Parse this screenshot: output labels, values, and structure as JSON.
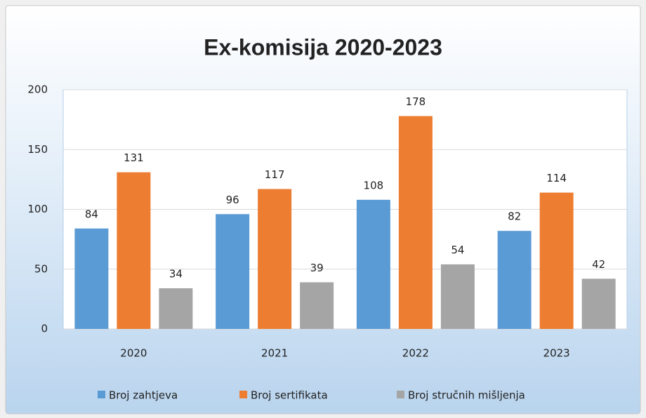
{
  "chart_data": {
    "type": "bar",
    "title": "Ex-komisija 2020-2023",
    "categories": [
      "2020",
      "2021",
      "2022",
      "2023"
    ],
    "series": [
      {
        "name": "Broj zahtjeva",
        "color": "#5b9bd5",
        "values": [
          84,
          96,
          108,
          82
        ]
      },
      {
        "name": "Broj sertifikata",
        "color": "#ed7d31",
        "values": [
          131,
          117,
          178,
          114
        ]
      },
      {
        "name": "Broj stručnih mišljenja",
        "color": "#a5a5a5",
        "values": [
          34,
          39,
          54,
          42
        ]
      }
    ],
    "ylim": [
      0,
      200
    ],
    "yticks": [
      0,
      50,
      100,
      150,
      200
    ],
    "grid": true,
    "legend": "bottom"
  }
}
